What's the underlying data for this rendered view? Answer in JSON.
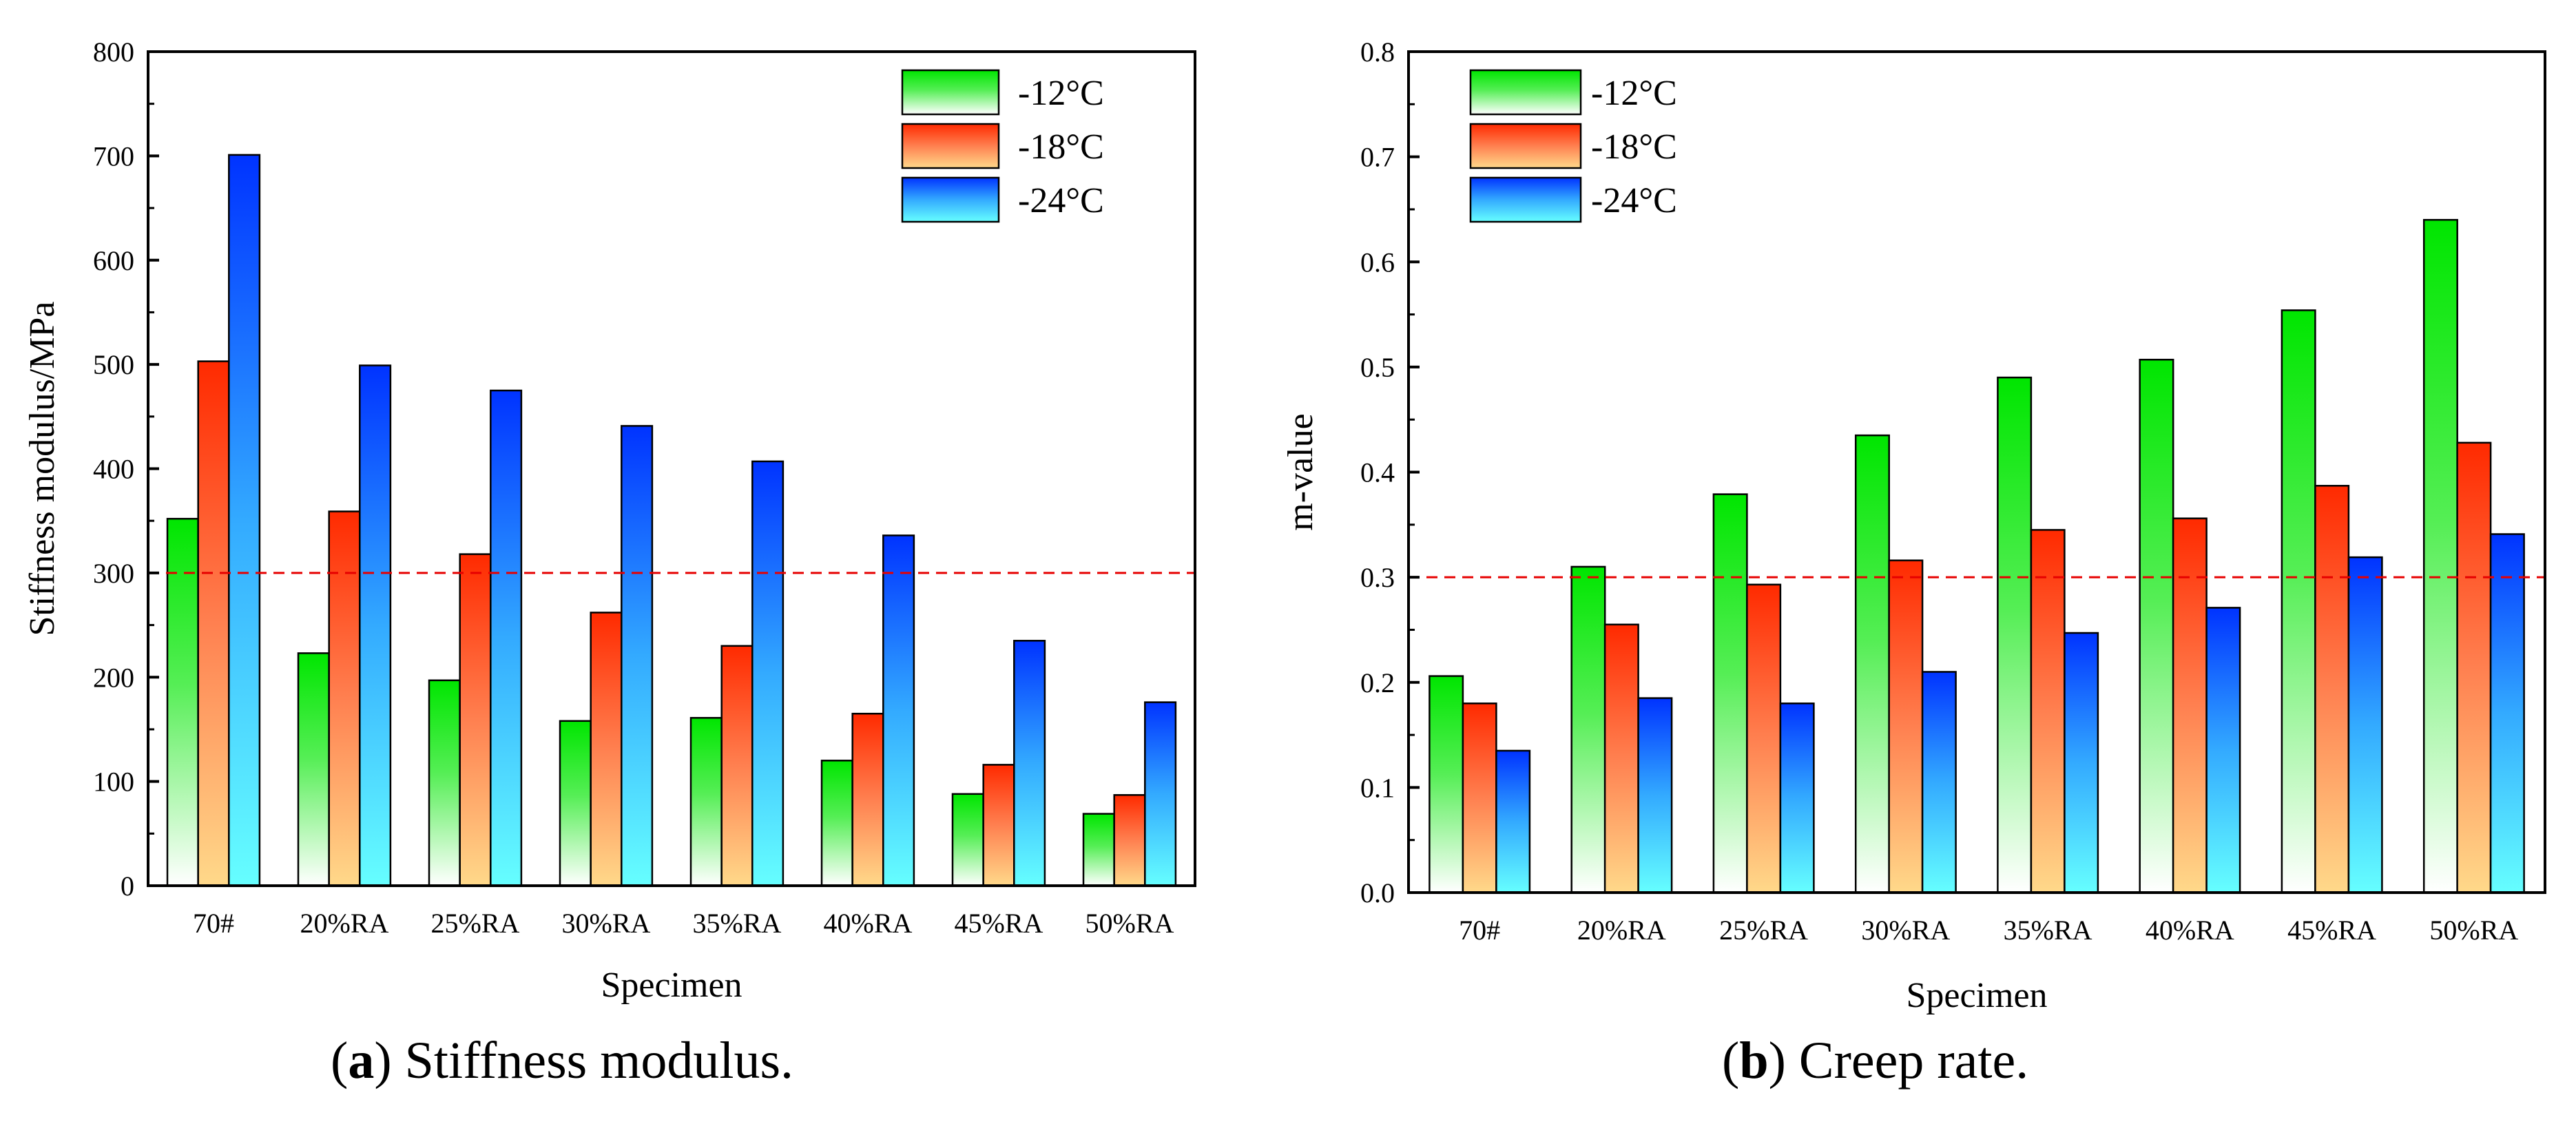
{
  "chart_data": [
    {
      "type": "bar",
      "caption_letter": "a",
      "caption_text": "Stiffness modulus.",
      "xlabel": "Specimen",
      "ylabel": "Stiffness modulus/MPa",
      "ylim": [
        0,
        800
      ],
      "ytick_values": [
        0,
        100,
        200,
        300,
        400,
        500,
        600,
        700,
        800
      ],
      "ytick_labels": [
        "0",
        "100",
        "200",
        "300",
        "400",
        "500",
        "600",
        "700",
        "800"
      ],
      "categories": [
        "70#",
        "20%RA",
        "25%RA",
        "30%RA",
        "35%RA",
        "40%RA",
        "45%RA",
        "50%RA"
      ],
      "series": [
        {
          "name": "-12°C",
          "values": [
            352,
            223,
            197,
            158,
            161,
            120,
            88,
            69
          ]
        },
        {
          "name": "-18°C",
          "values": [
            503,
            359,
            318,
            262,
            230,
            165,
            116,
            87
          ]
        },
        {
          "name": "-24°C",
          "values": [
            701,
            499,
            475,
            441,
            407,
            336,
            235,
            176
          ]
        }
      ],
      "reference_line": 300,
      "legend_position": "top-right"
    },
    {
      "type": "bar",
      "caption_letter": "b",
      "caption_text": "Creep rate.",
      "xlabel": "Specimen",
      "ylabel": "m-value",
      "ylim": [
        0,
        0.8
      ],
      "ytick_values": [
        0,
        0.1,
        0.2,
        0.3,
        0.4,
        0.5,
        0.6,
        0.7,
        0.8
      ],
      "ytick_labels": [
        "0.0",
        "0.1",
        "0.2",
        "0.3",
        "0.4",
        "0.5",
        "0.6",
        "0.7",
        "0.8"
      ],
      "categories": [
        "70#",
        "20%RA",
        "25%RA",
        "30%RA",
        "35%RA",
        "40%RA",
        "45%RA",
        "50%RA"
      ],
      "series": [
        {
          "name": "-12°C",
          "values": [
            0.206,
            0.31,
            0.379,
            0.435,
            0.49,
            0.507,
            0.554,
            0.64
          ]
        },
        {
          "name": "-18°C",
          "values": [
            0.18,
            0.255,
            0.293,
            0.316,
            0.345,
            0.356,
            0.387,
            0.428
          ]
        },
        {
          "name": "-24°C",
          "values": [
            0.135,
            0.185,
            0.18,
            0.21,
            0.247,
            0.271,
            0.319,
            0.341
          ]
        }
      ],
      "reference_line": 0.3,
      "legend_position": "top-left"
    }
  ],
  "colors": {
    "series_top": [
      "#00e600",
      "#ff2a00",
      "#0033ff"
    ],
    "series_bottom": [
      "#ffffff",
      "#ffd98a",
      "#66ffff"
    ],
    "reference_line": "#e60000",
    "axis": "#000000"
  }
}
